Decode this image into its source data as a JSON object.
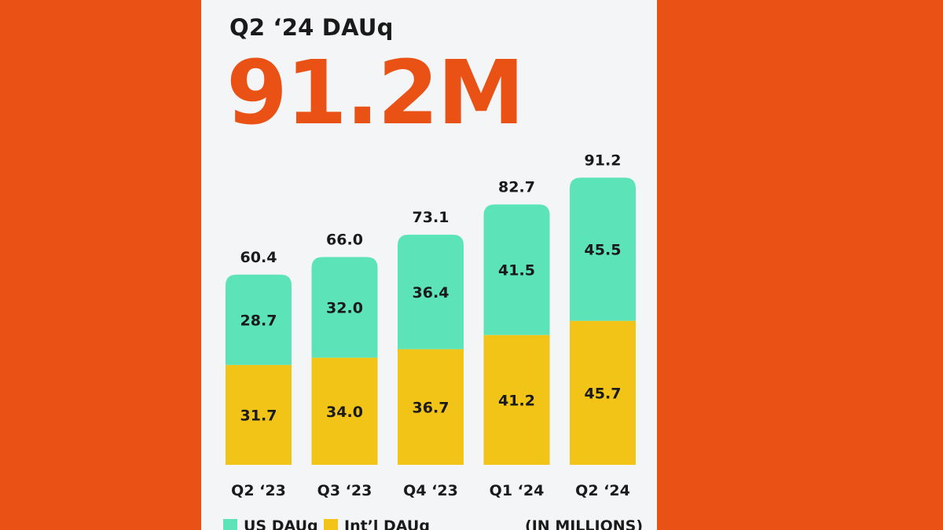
{
  "colors": {
    "background": "#E95214",
    "card": "#F4F5F7",
    "us": "#5CE3B8",
    "intl": "#F2C418",
    "headline": "#E95214",
    "text": "#1A1A1A"
  },
  "headline": {
    "title": "Q2 ‘24 DAUq",
    "value": "91.2M"
  },
  "chart_data": {
    "type": "bar",
    "stacked": true,
    "categories": [
      "Q2 ‘23",
      "Q3 ‘23",
      "Q4 ‘23",
      "Q1 ‘24",
      "Q2 ‘24"
    ],
    "series": [
      {
        "name": "Int’l DAUq",
        "values": [
          31.7,
          34.0,
          36.7,
          41.2,
          45.7
        ],
        "labels": [
          "31.7",
          "34.0",
          "36.7",
          "41.2",
          "45.7"
        ]
      },
      {
        "name": "US DAUq",
        "values": [
          28.7,
          32.0,
          36.4,
          41.5,
          45.5
        ],
        "labels": [
          "28.7",
          "32.0",
          "36.4",
          "41.5",
          "45.5"
        ]
      }
    ],
    "totals": [
      60.4,
      66.0,
      73.1,
      82.7,
      91.2
    ],
    "total_labels": [
      "60.4",
      "66.0",
      "73.1",
      "82.7",
      "91.2"
    ],
    "title": "Q2 ‘24 DAUq",
    "units": "(IN MILLIONS)",
    "grid": false,
    "legend_position": "bottom"
  }
}
